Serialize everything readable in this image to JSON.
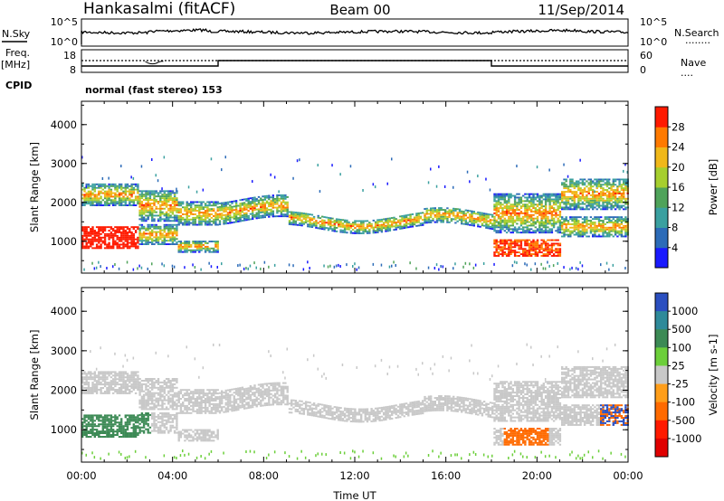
{
  "header": {
    "station": "Hankasalmi (fitACF)",
    "beam": "Beam 00",
    "date": "11/Sep/2014"
  },
  "strip": {
    "nsky_label": "N.Sky",
    "nsearch_label": "N.Search",
    "nsearch_line": "........",
    "noise_ticks_left": [
      "10^5",
      "10^0"
    ],
    "noise_ticks_right": [
      "10^5",
      "10^0"
    ],
    "freq_label": "Freq.",
    "freq_unit": "[MHz]",
    "freq_ticks": [
      "18",
      "8"
    ],
    "nave_label": "Nave",
    "nave_line": "....",
    "nave_ticks": [
      "60",
      "0"
    ],
    "cpid_label": "CPID",
    "cpid_text": "normal (fast stereo) 153"
  },
  "chart_data": [
    {
      "type": "heatmap",
      "name": "power",
      "ylabel": "Slant Range [km]",
      "xlabel": "",
      "yticks": [
        1000,
        2000,
        3000,
        4000
      ],
      "ylim": [
        180,
        4600
      ],
      "xticks": [
        "00:00",
        "04:00",
        "08:00",
        "12:00",
        "16:00",
        "20:00",
        "00:00"
      ],
      "xlim_hours": [
        0,
        24
      ],
      "colorbar": {
        "label": "Power [dB]",
        "ticks": [
          "4",
          "8",
          "12",
          "16",
          "20",
          "24",
          "28"
        ],
        "colors": [
          "#1a1aff",
          "#2c6bb8",
          "#3aa0a0",
          "#4fa35a",
          "#a6cf2e",
          "#f0b81a",
          "#ff7a00",
          "#ff1a00"
        ]
      }
    },
    {
      "type": "heatmap",
      "name": "velocity",
      "ylabel": "Slant Range [km]",
      "xlabel": "Time UT",
      "yticks": [
        1000,
        2000,
        3000,
        4000
      ],
      "ylim": [
        180,
        4600
      ],
      "xticks": [
        "00:00",
        "04:00",
        "08:00",
        "12:00",
        "16:00",
        "20:00",
        "00:00"
      ],
      "xlim_hours": [
        0,
        24
      ],
      "colorbar": {
        "label": "Velocity [m s-1]",
        "ticks": [
          "1000",
          "500",
          "100",
          "25",
          "-25",
          "-100",
          "-500",
          "-1000"
        ],
        "colors": [
          "#2b4fc0",
          "#2f8a9a",
          "#3c8a55",
          "#6ccf3a",
          "#c8c8c8",
          "#ff9e1a",
          "#ff6a00",
          "#ff1a00",
          "#e00000"
        ]
      }
    }
  ]
}
